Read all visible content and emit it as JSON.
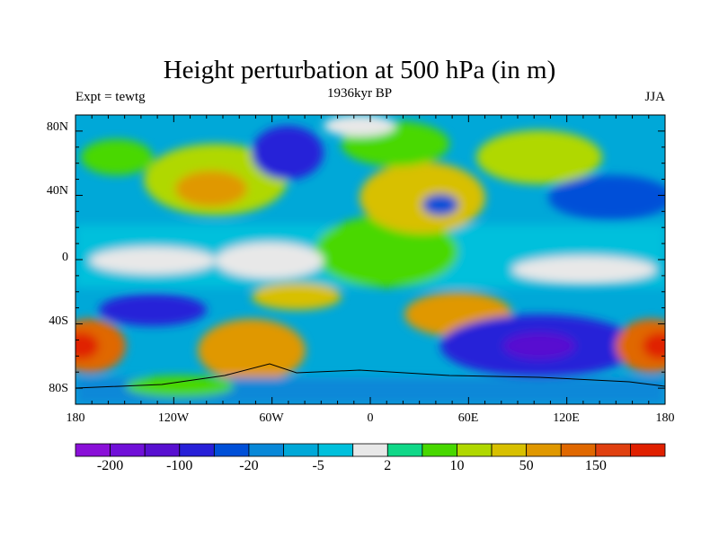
{
  "title": "Height perturbation at 500 hPa (in m)",
  "left_subtitle": "Expt = tewtg",
  "center_subtitle": "1936kyr BP",
  "right_subtitle": "JJA",
  "map": {
    "projection": "cylindrical-equidistant",
    "lon_range": [
      -180,
      180
    ],
    "lat_range": [
      -90,
      90
    ],
    "x_tick_labels": [
      "180",
      "120W",
      "60W",
      "0",
      "60E",
      "120E",
      "180"
    ],
    "y_tick_labels": [
      "80N",
      "40N",
      "0",
      "40S",
      "80S"
    ]
  },
  "colorbar": {
    "colors": [
      "#8a10d8",
      "#7010d8",
      "#5810d0",
      "#2820d8",
      "#0050d8",
      "#0888d8",
      "#00a8d8",
      "#00c0dc",
      "#e8e8e8",
      "#10d888",
      "#48d800",
      "#b0d800",
      "#d8c000",
      "#e09800",
      "#e06800",
      "#e04010",
      "#e02000"
    ],
    "labels": [
      "-200",
      "-100",
      "-20",
      "-5",
      "2",
      "10",
      "50",
      "150"
    ]
  }
}
